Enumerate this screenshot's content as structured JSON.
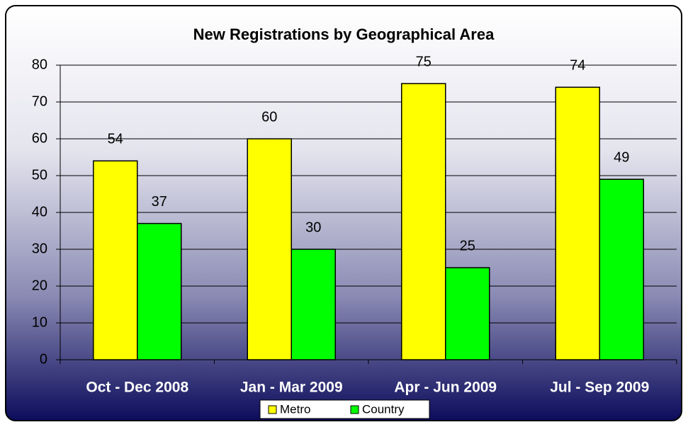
{
  "chart_data": {
    "type": "bar",
    "title": "New Registrations by Geographical Area",
    "categories": [
      "Oct - Dec 2008",
      "Jan - Mar 2009",
      "Apr - Jun 2009",
      "Jul - Sep 2009"
    ],
    "series": [
      {
        "name": "Metro",
        "color": "#ffff00",
        "values": [
          54,
          60,
          75,
          74
        ]
      },
      {
        "name": "Country",
        "color": "#00ff00",
        "values": [
          37,
          30,
          25,
          49
        ]
      }
    ],
    "ylim": [
      0,
      80
    ],
    "yticks": [
      0,
      10,
      20,
      30,
      40,
      50,
      60,
      70,
      80
    ],
    "grid": true,
    "legend": "bottom"
  }
}
